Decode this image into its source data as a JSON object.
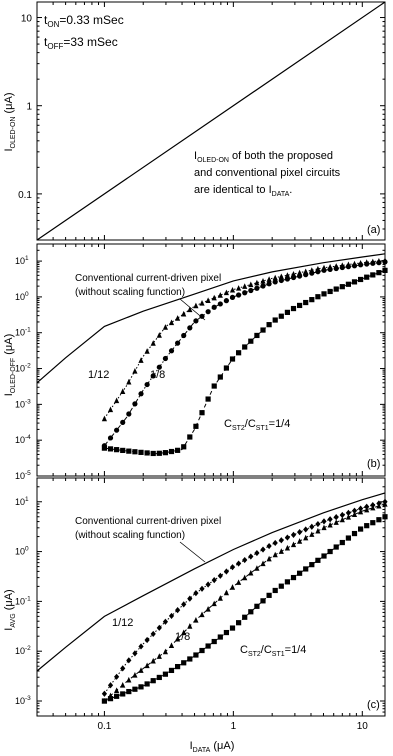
{
  "chart_data": [
    {
      "type": "line",
      "panel_label": "(a)",
      "xscale": "log",
      "yscale": "log",
      "xlim": [
        0.03,
        15
      ],
      "ylim": [
        0.03,
        15
      ],
      "ylabel": {
        "main": "I",
        "sub": "OLED-ON",
        "unit": " (μA)"
      },
      "yticks": [
        {
          "value": 0.1,
          "label": "0.1"
        },
        {
          "value": 1,
          "label": "1"
        },
        {
          "value": 10,
          "label": "10"
        }
      ],
      "params": [
        {
          "main": "t",
          "sub": "ON",
          "rest": "=0.33 mSec"
        },
        {
          "main": "t",
          "sub": "OFF",
          "rest": "=33 mSec"
        }
      ],
      "annotation": {
        "line1_main": "I",
        "line1_sub": "OLED-ON",
        "line1_rest": " of both the proposed",
        "line2": "and conventional pixel circuits",
        "line3_main": "are identical to I",
        "line3_sub": "DATA",
        "line3_rest": "."
      },
      "series": [
        {
          "style": "solid",
          "x": [
            0.03,
            15
          ],
          "y": [
            0.03,
            15
          ]
        }
      ]
    },
    {
      "type": "line",
      "panel_label": "(b)",
      "xscale": "log",
      "yscale": "log",
      "xlim": [
        0.03,
        15
      ],
      "ylim": [
        1e-05,
        30
      ],
      "ylabel": {
        "main": "I",
        "sub": "OLED-OFF",
        "unit": " (μA)"
      },
      "yticks": [
        {
          "value": 1e-05,
          "base": "10",
          "exp": "-5"
        },
        {
          "value": 0.0001,
          "base": "10",
          "exp": "-4"
        },
        {
          "value": 0.001,
          "base": "10",
          "exp": "-3"
        },
        {
          "value": 0.01,
          "base": "10",
          "exp": "-2"
        },
        {
          "value": 0.1,
          "base": "10",
          "exp": "-1"
        },
        {
          "value": 1,
          "base": "10",
          "exp": "0"
        },
        {
          "value": 10,
          "base": "10",
          "exp": "1"
        }
      ],
      "conv_label": [
        "Conventional current-driven pixel",
        "(without scaling function)"
      ],
      "ratio_labels": {
        "r12": "1/12",
        "r8": "1/8",
        "r4": {
          "m1": "C",
          "s1": "ST2",
          "mid": "/C",
          "s2": "ST1",
          "rest": "=1/4"
        }
      },
      "series": [
        {
          "name": "Conventional current-driven pixel",
          "style": "solid",
          "x": [
            0.03,
            0.05,
            0.1,
            0.2,
            0.5,
            1,
            2,
            5,
            10,
            15
          ],
          "y": [
            0.004,
            0.02,
            0.15,
            0.4,
            1.2,
            2.8,
            5,
            9,
            13,
            16
          ]
        },
        {
          "name": "1/12",
          "marker": "triangle",
          "connect": "dotted",
          "x": [
            0.1,
            0.15,
            0.2,
            0.3,
            0.5,
            1,
            2,
            5,
            10,
            15
          ],
          "y": [
            0.0004,
            0.0035,
            0.022,
            0.15,
            0.55,
            1.6,
            3.3,
            6.5,
            9,
            10.5
          ]
        },
        {
          "name": "1/8",
          "marker": "circle",
          "connect": "dashdot",
          "x": [
            0.1,
            0.15,
            0.2,
            0.3,
            0.5,
            0.7,
            1,
            2,
            5,
            10,
            15
          ],
          "y": [
            7e-05,
            0.00045,
            0.0025,
            0.02,
            0.2,
            0.5,
            1.0,
            2.5,
            5.5,
            8,
            9.5
          ]
        },
        {
          "name": "C_ST2/C_ST1=1/4",
          "marker": "square",
          "connect": "dashed",
          "x": [
            0.1,
            0.15,
            0.2,
            0.25,
            0.3,
            0.4,
            0.5,
            0.7,
            1,
            1.5,
            2,
            3,
            5,
            10,
            15
          ],
          "y": [
            6e-05,
            5e-05,
            4.5e-05,
            4.2e-05,
            4.5e-05,
            5.5e-05,
            0.0002,
            0.003,
            0.02,
            0.08,
            0.2,
            0.5,
            1.2,
            3.2,
            5.5
          ]
        }
      ]
    },
    {
      "type": "line",
      "panel_label": "(c)",
      "xscale": "log",
      "yscale": "log",
      "xlim": [
        0.03,
        15
      ],
      "ylim": [
        0.0005,
        30
      ],
      "xlabel": {
        "main": "I",
        "sub": "DATA",
        "unit": " (μA)"
      },
      "xticks": [
        {
          "value": 0.1,
          "label": "0.1"
        },
        {
          "value": 1,
          "label": "1"
        },
        {
          "value": 10,
          "label": "10"
        }
      ],
      "ylabel": {
        "main": "I",
        "sub": "AVG",
        "unit": " (μA)"
      },
      "yticks": [
        {
          "value": 0.001,
          "base": "10",
          "exp": "-3"
        },
        {
          "value": 0.01,
          "base": "10",
          "exp": "-2"
        },
        {
          "value": 0.1,
          "base": "10",
          "exp": "-1"
        },
        {
          "value": 1,
          "base": "10",
          "exp": "0"
        },
        {
          "value": 10,
          "base": "10",
          "exp": "1"
        }
      ],
      "conv_label": [
        "Conventional current-driven pixel",
        "(without scaling function)"
      ],
      "ratio_labels": {
        "r12": "1/12",
        "r8": "1/8",
        "r4": {
          "m1": "C",
          "s1": "ST2",
          "mid": "/C",
          "s2": "ST1",
          "rest": "=1/4"
        }
      },
      "series": [
        {
          "name": "Conventional current-driven pixel",
          "style": "solid",
          "x": [
            0.03,
            0.05,
            0.1,
            0.2,
            0.5,
            1,
            2,
            5,
            10,
            15
          ],
          "y": [
            0.004,
            0.012,
            0.05,
            0.13,
            0.45,
            1.1,
            2.4,
            6,
            11,
            15
          ]
        },
        {
          "name": "1/12",
          "marker": "diamond",
          "connect": "dotted",
          "x": [
            0.1,
            0.15,
            0.2,
            0.3,
            0.5,
            1,
            2,
            5,
            10,
            15
          ],
          "y": [
            0.0014,
            0.006,
            0.014,
            0.04,
            0.14,
            0.5,
            1.4,
            4,
            7.5,
            10
          ]
        },
        {
          "name": "1/8",
          "marker": "triangle",
          "connect": "dashed",
          "x": [
            0.1,
            0.15,
            0.2,
            0.3,
            0.5,
            1,
            2,
            5,
            10,
            15
          ],
          "y": [
            0.001,
            0.0025,
            0.0045,
            0.01,
            0.04,
            0.2,
            0.8,
            3,
            6.5,
            9
          ]
        },
        {
          "name": "C_ST2/C_ST1=1/4",
          "marker": "square",
          "connect": "dashed",
          "x": [
            0.1,
            0.15,
            0.2,
            0.3,
            0.5,
            1,
            2,
            5,
            10,
            15
          ],
          "y": [
            0.001,
            0.0015,
            0.002,
            0.0035,
            0.008,
            0.03,
            0.15,
            0.8,
            3,
            5
          ]
        }
      ]
    }
  ]
}
